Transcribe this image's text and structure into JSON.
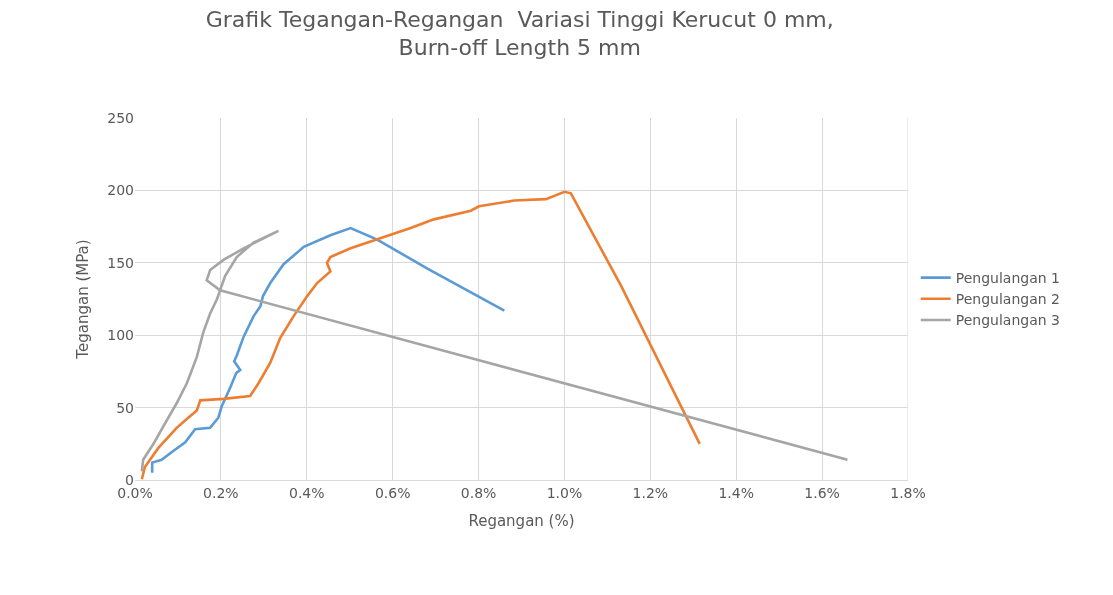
{
  "chart_data": {
    "type": "line",
    "title": "Grafik Tegangan-Regangan  Variasi Tinggi Kerucut 0 mm, Burn-off Length 5 mm",
    "xlabel": "Regangan (%)",
    "ylabel": "Tegangan (MPa)",
    "xlim": [
      0,
      1.8
    ],
    "ylim": [
      0,
      250
    ],
    "xticks": [
      {
        "value": 0,
        "label": "0.0%"
      },
      {
        "value": 0.2,
        "label": "0.2%"
      },
      {
        "value": 0.4,
        "label": "0.4%"
      },
      {
        "value": 0.6,
        "label": "0.6%"
      },
      {
        "value": 0.8,
        "label": "0.8%"
      },
      {
        "value": 1.0,
        "label": "1.0%"
      },
      {
        "value": 1.2,
        "label": "1.2%"
      },
      {
        "value": 1.4,
        "label": "1.4%"
      },
      {
        "value": 1.6,
        "label": "1.6%"
      },
      {
        "value": 1.8,
        "label": "1.8%"
      }
    ],
    "yticks": [
      0,
      50,
      100,
      150,
      200,
      250
    ],
    "grid": true,
    "legend": "right",
    "marker": "none",
    "line_style": "solid",
    "series": [
      {
        "name": "Pengulangan 1",
        "color": "#5b9bd5",
        "x": [
          0.04,
          0.04,
          0.062,
          0.089,
          0.117,
          0.14,
          0.175,
          0.194,
          0.202,
          0.222,
          0.236,
          0.245,
          0.231,
          0.237,
          0.253,
          0.276,
          0.292,
          0.298,
          0.315,
          0.346,
          0.393,
          0.455,
          0.502,
          0.564,
          0.681,
          0.86
        ],
        "values": [
          5,
          12,
          14,
          20,
          26,
          35,
          36,
          43,
          51,
          64,
          74,
          76,
          82,
          86,
          99,
          113,
          120,
          127,
          136,
          149,
          161,
          169,
          174,
          166,
          146,
          117
        ]
      },
      {
        "name": "Pengulangan 2",
        "color": "#ed7d31",
        "x": [
          0.016,
          0.023,
          0.054,
          0.097,
          0.124,
          0.144,
          0.152,
          0.206,
          0.268,
          0.288,
          0.315,
          0.338,
          0.369,
          0.401,
          0.424,
          0.455,
          0.447,
          0.455,
          0.502,
          0.642,
          0.696,
          0.782,
          0.801,
          0.883,
          0.957,
          1.0,
          1.015,
          1.132,
          1.315
        ],
        "values": [
          0.5,
          9,
          22,
          36,
          43,
          48,
          55,
          56,
          58,
          67,
          81,
          98,
          113,
          127,
          136,
          144,
          150,
          154,
          160,
          174,
          180,
          186,
          189,
          193,
          194,
          199,
          198,
          134,
          25
        ]
      },
      {
        "name": "Pengulangan 3",
        "color": "#a5a5a5",
        "x": [
          0.016,
          0.019,
          0.043,
          0.066,
          0.097,
          0.121,
          0.144,
          0.159,
          0.175,
          0.191,
          0.21,
          0.237,
          0.276,
          0.334,
          0.253,
          0.206,
          0.175,
          0.167,
          0.198,
          1.659
        ],
        "values": [
          6,
          14,
          25,
          37,
          53,
          67,
          85,
          102,
          115,
          125,
          141,
          154,
          164,
          172,
          160,
          152,
          145,
          138,
          131,
          14
        ]
      }
    ]
  }
}
